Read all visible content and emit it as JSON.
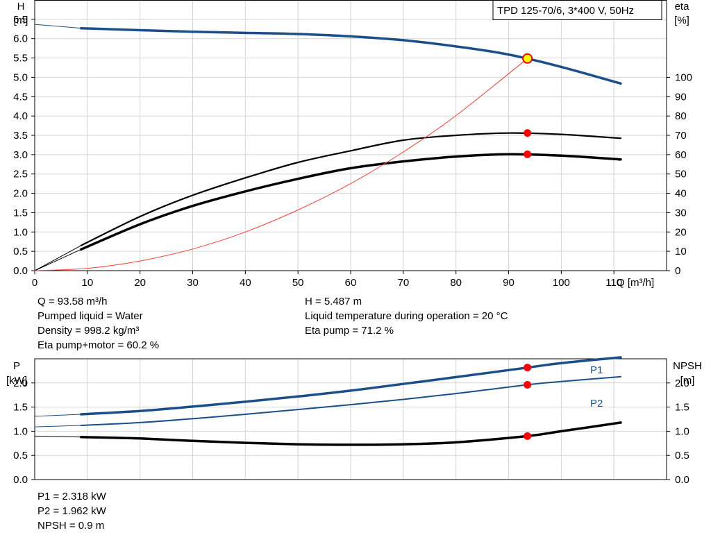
{
  "chart_data": [
    {
      "type": "line",
      "title": "TPD 125-70/6, 3*400 V, 50Hz",
      "xlabel": "Q [m³/h]",
      "ylabel_left": {
        "symbol": "H",
        "unit": "[m]"
      },
      "ylabel_right": {
        "symbol": "eta",
        "unit": "[%]"
      },
      "xlim": [
        0,
        120
      ],
      "ylim_left": [
        0,
        7
      ],
      "ylim_right": [
        0,
        140
      ],
      "x_ticks": [
        "0",
        "10",
        "20",
        "30",
        "40",
        "50",
        "60",
        "70",
        "80",
        "90",
        "100",
        "110"
      ],
      "y_ticks_left": [
        "0.0",
        "0.5",
        "1.0",
        "1.5",
        "2.0",
        "2.5",
        "3.0",
        "3.5",
        "4.0",
        "4.5",
        "5.0",
        "5.5",
        "6.0",
        "6.5"
      ],
      "y_ticks_right": [
        "0",
        "10",
        "20",
        "30",
        "40",
        "50",
        "60",
        "70",
        "80",
        "90",
        "100"
      ],
      "grid": true,
      "series": [
        {
          "id": "head",
          "axis": "left",
          "color": "#1a4f8a",
          "x": [
            8.8,
            20,
            30,
            40,
            50,
            60,
            70,
            80,
            90,
            100,
            111.3
          ],
          "y": [
            6.27,
            6.22,
            6.18,
            6.15,
            6.12,
            6.06,
            5.96,
            5.8,
            5.59,
            5.27,
            4.84
          ],
          "lead_x": [
            0,
            8.8
          ],
          "lead_y": [
            6.37,
            6.27
          ]
        },
        {
          "id": "eta-pump",
          "axis": "right",
          "color": "#000000",
          "x": [
            8.8,
            20,
            30,
            40,
            50,
            60,
            70,
            80,
            90,
            100,
            111.3
          ],
          "y": [
            13,
            28,
            39,
            48,
            56,
            62,
            67.5,
            70,
            71.2,
            70.5,
            68.5
          ],
          "lead_x": [
            0,
            8.8
          ],
          "lead_y": [
            0,
            13
          ]
        },
        {
          "id": "eta-pump-motor",
          "axis": "right",
          "color": "#000000",
          "x": [
            8.8,
            20,
            30,
            40,
            50,
            60,
            70,
            80,
            90,
            100,
            111.3
          ],
          "y": [
            11,
            24,
            33.5,
            41,
            47.5,
            53,
            56.5,
            59,
            60.2,
            59.5,
            57.5
          ],
          "lead_x": [
            0,
            8.8
          ],
          "lead_y": [
            0,
            11
          ]
        },
        {
          "id": "system-curve",
          "axis": "left",
          "color": "#ff3b30",
          "x": [
            0,
            10,
            20,
            30,
            40,
            50,
            60,
            70,
            80,
            93.58
          ],
          "y": [
            0,
            0.06,
            0.25,
            0.56,
            1.0,
            1.57,
            2.25,
            3.07,
            4.01,
            5.487
          ]
        }
      ],
      "operating_points": [
        {
          "series": "head",
          "axis": "left",
          "x": 93.58,
          "y": 5.487,
          "fill": "#ffff00"
        },
        {
          "series": "eta-pump",
          "axis": "right",
          "x": 93.58,
          "y": 71.2,
          "fill": "#ff0000"
        },
        {
          "series": "eta-pump-motor",
          "axis": "right",
          "x": 93.58,
          "y": 60.2,
          "fill": "#ff0000"
        }
      ]
    },
    {
      "type": "line",
      "xlim": [
        0,
        120
      ],
      "ylabel_left": {
        "symbol": "P",
        "unit": "[kW]"
      },
      "ylabel_right": {
        "symbol": "NPSH",
        "unit": "[m]"
      },
      "ylim_left": [
        0,
        2.5
      ],
      "ylim_right": [
        0,
        2.5
      ],
      "y_ticks_left": [
        "0.0",
        "0.5",
        "1.0",
        "1.5",
        "2.0"
      ],
      "y_ticks_right": [
        "0.0",
        "0.5",
        "1.0",
        "1.5",
        "2.0"
      ],
      "grid": true,
      "series": [
        {
          "id": "p1",
          "name": "P1",
          "axis": "left",
          "color": "#1a4f8a",
          "x": [
            8.8,
            20,
            30,
            40,
            50,
            60,
            70,
            80,
            93.58,
            100,
            111.3
          ],
          "y": [
            1.35,
            1.42,
            1.51,
            1.61,
            1.72,
            1.84,
            1.98,
            2.12,
            2.318,
            2.41,
            2.53
          ],
          "lead_x": [
            0,
            8.8
          ],
          "lead_y": [
            1.31,
            1.35
          ]
        },
        {
          "id": "p2",
          "name": "P2",
          "axis": "left",
          "color": "#1a4f8a",
          "x": [
            8.8,
            20,
            30,
            40,
            50,
            60,
            70,
            80,
            93.58,
            100,
            111.3
          ],
          "y": [
            1.12,
            1.18,
            1.26,
            1.35,
            1.45,
            1.55,
            1.66,
            1.78,
            1.962,
            2.03,
            2.13
          ],
          "lead_x": [
            0,
            8.8
          ],
          "lead_y": [
            1.09,
            1.12
          ]
        },
        {
          "id": "npsh",
          "axis": "right",
          "color": "#000000",
          "x": [
            8.8,
            20,
            30,
            40,
            50,
            60,
            70,
            80,
            93.58,
            100,
            111.3
          ],
          "y": [
            0.88,
            0.85,
            0.8,
            0.76,
            0.73,
            0.72,
            0.73,
            0.77,
            0.9,
            1.0,
            1.18
          ],
          "lead_x": [
            0,
            8.8
          ],
          "lead_y": [
            0.9,
            0.88
          ]
        }
      ],
      "operating_points": [
        {
          "series": "p1",
          "axis": "left",
          "x": 93.58,
          "y": 2.318,
          "fill": "#ff0000"
        },
        {
          "series": "p2",
          "axis": "left",
          "x": 93.58,
          "y": 1.962,
          "fill": "#ff0000"
        },
        {
          "series": "npsh",
          "axis": "right",
          "x": 93.58,
          "y": 0.9,
          "fill": "#ff0000"
        }
      ]
    }
  ],
  "info_top_left": [
    "Q = 93.58 m³/h",
    "Pumped liquid = Water",
    "Density = 998.2 kg/m³",
    "Eta pump+motor = 60.2 %"
  ],
  "info_top_right": [
    "H = 5.487 m",
    "Liquid temperature during operation = 20 °C",
    "Eta pump = 71.2 %"
  ],
  "info_bottom": [
    "P1 = 2.318 kW",
    "P2 = 1.962 kW",
    "NPSH = 0.9 m"
  ]
}
